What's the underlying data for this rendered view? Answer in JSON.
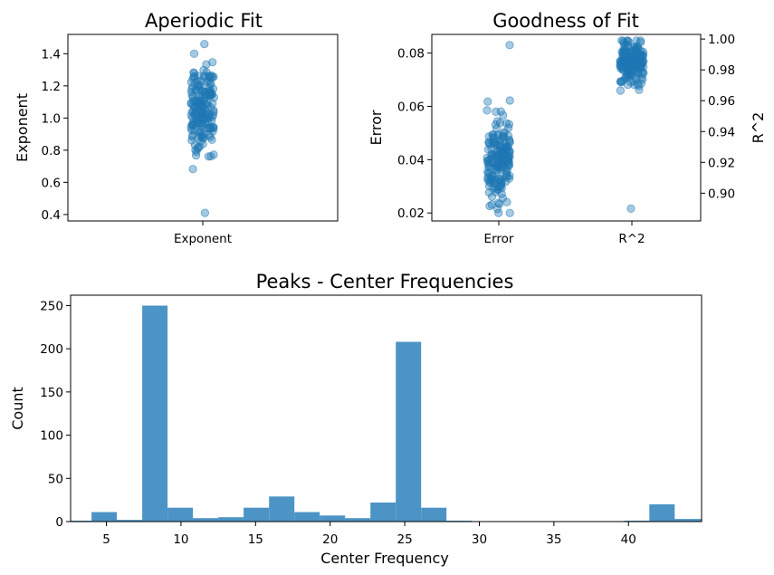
{
  "chart_data": [
    {
      "type": "scatter",
      "title": "Aperiodic Fit",
      "xlabel": "",
      "ylabel": "Exponent",
      "x_categories": [
        "Exponent"
      ],
      "ylim": [
        0.36,
        1.52
      ],
      "yticks": [
        "0.4",
        "0.6",
        "0.8",
        "1.0",
        "1.2",
        "1.4"
      ],
      "point_color": "#1f77b4",
      "point_alpha": 0.4,
      "n_points": 180,
      "distribution": {
        "center": 1.05,
        "spread": 0.14,
        "min": 0.41,
        "max": 1.46
      }
    },
    {
      "type": "scatter",
      "title": "Goodness of Fit",
      "xlabel": "",
      "ylabel": "Error",
      "ylabel_right": "R^2",
      "x_categories": [
        "Error",
        "R^2"
      ],
      "ylim_left": [
        0.017,
        0.087
      ],
      "ylim_right": [
        0.882,
        1.003
      ],
      "yticks_left": [
        "0.02",
        "0.04",
        "0.06",
        "0.08"
      ],
      "yticks_right": [
        "0.90",
        "0.92",
        "0.94",
        "0.96",
        "0.98",
        "1.00"
      ],
      "point_color": "#1f77b4",
      "point_alpha": 0.4,
      "error_distribution": {
        "n_points": 180,
        "center": 0.04,
        "spread": 0.008,
        "min": 0.02,
        "max": 0.083
      },
      "r2_distribution": {
        "n_points": 180,
        "center": 0.985,
        "spread": 0.007,
        "min": 0.89,
        "max": 0.999
      }
    },
    {
      "type": "bar",
      "title": "Peaks - Center Frequencies",
      "xlabel": "Center Frequency",
      "ylabel": "Count",
      "xlim": [
        2.6,
        44.9
      ],
      "ylim": [
        0,
        262
      ],
      "xticks": [
        "5",
        "10",
        "15",
        "20",
        "25",
        "30",
        "35",
        "40"
      ],
      "yticks": [
        "0",
        "50",
        "100",
        "150",
        "200",
        "250"
      ],
      "bar_color": "#4c94c5",
      "bin_edges": [
        2.6,
        4.0,
        5.7,
        7.4,
        9.1,
        10.8,
        12.5,
        14.2,
        15.9,
        17.6,
        19.3,
        21.0,
        22.7,
        24.4,
        26.1,
        27.8,
        29.5,
        31.2,
        32.9,
        34.6,
        36.3,
        38.0,
        39.7,
        41.4,
        43.1,
        44.9
      ],
      "counts": [
        1,
        11,
        2,
        250,
        16,
        4,
        5,
        16,
        29,
        11,
        7,
        4,
        22,
        208,
        16,
        1,
        0,
        0,
        0,
        0,
        0,
        0,
        1,
        20,
        3
      ]
    }
  ]
}
